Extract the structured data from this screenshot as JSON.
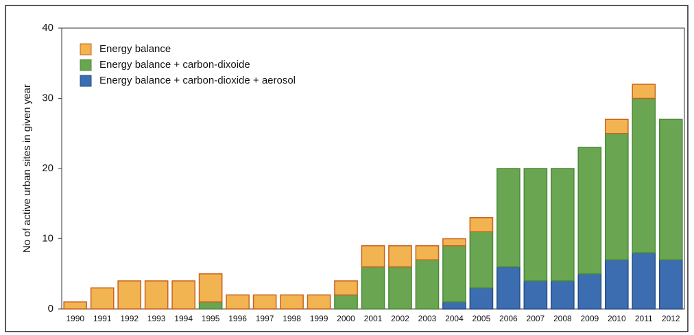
{
  "chart_data": {
    "type": "stacked-bar",
    "y_label": "No of active urban sites in given year",
    "categories": [
      "1990",
      "1991",
      "1992",
      "1993",
      "1994",
      "1995",
      "1996",
      "1997",
      "1998",
      "1999",
      "2000",
      "2001",
      "2002",
      "2003",
      "2004",
      "2005",
      "2006",
      "2007",
      "2008",
      "2009",
      "2010",
      "2011",
      "2012"
    ],
    "series": [
      {
        "name": "Energy balance",
        "color": "#f2b450",
        "stroke": "#c8621e",
        "values": [
          1,
          3,
          4,
          4,
          4,
          4,
          2,
          2,
          2,
          2,
          2,
          3,
          3,
          2,
          1,
          2,
          0,
          0,
          0,
          0,
          2,
          2,
          0
        ]
      },
      {
        "name": "Energy balance + carbon-dixoide",
        "color": "#6aa552",
        "stroke": "#4b8a37",
        "values": [
          0,
          0,
          0,
          0,
          0,
          1,
          0,
          0,
          0,
          0,
          2,
          6,
          6,
          7,
          8,
          8,
          14,
          16,
          16,
          18,
          18,
          22,
          20
        ]
      },
      {
        "name": "Energy balance + carbon-dioxide  + aerosol",
        "color": "#3b6db0",
        "stroke": "#264e8a",
        "values": [
          0,
          0,
          0,
          0,
          0,
          0,
          0,
          0,
          0,
          0,
          0,
          0,
          0,
          0,
          1,
          3,
          6,
          4,
          4,
          5,
          7,
          8,
          7
        ]
      }
    ],
    "ylim": [
      0,
      40
    ],
    "yticks": [
      0,
      10,
      20,
      30,
      40
    ],
    "legend": "top-left"
  }
}
